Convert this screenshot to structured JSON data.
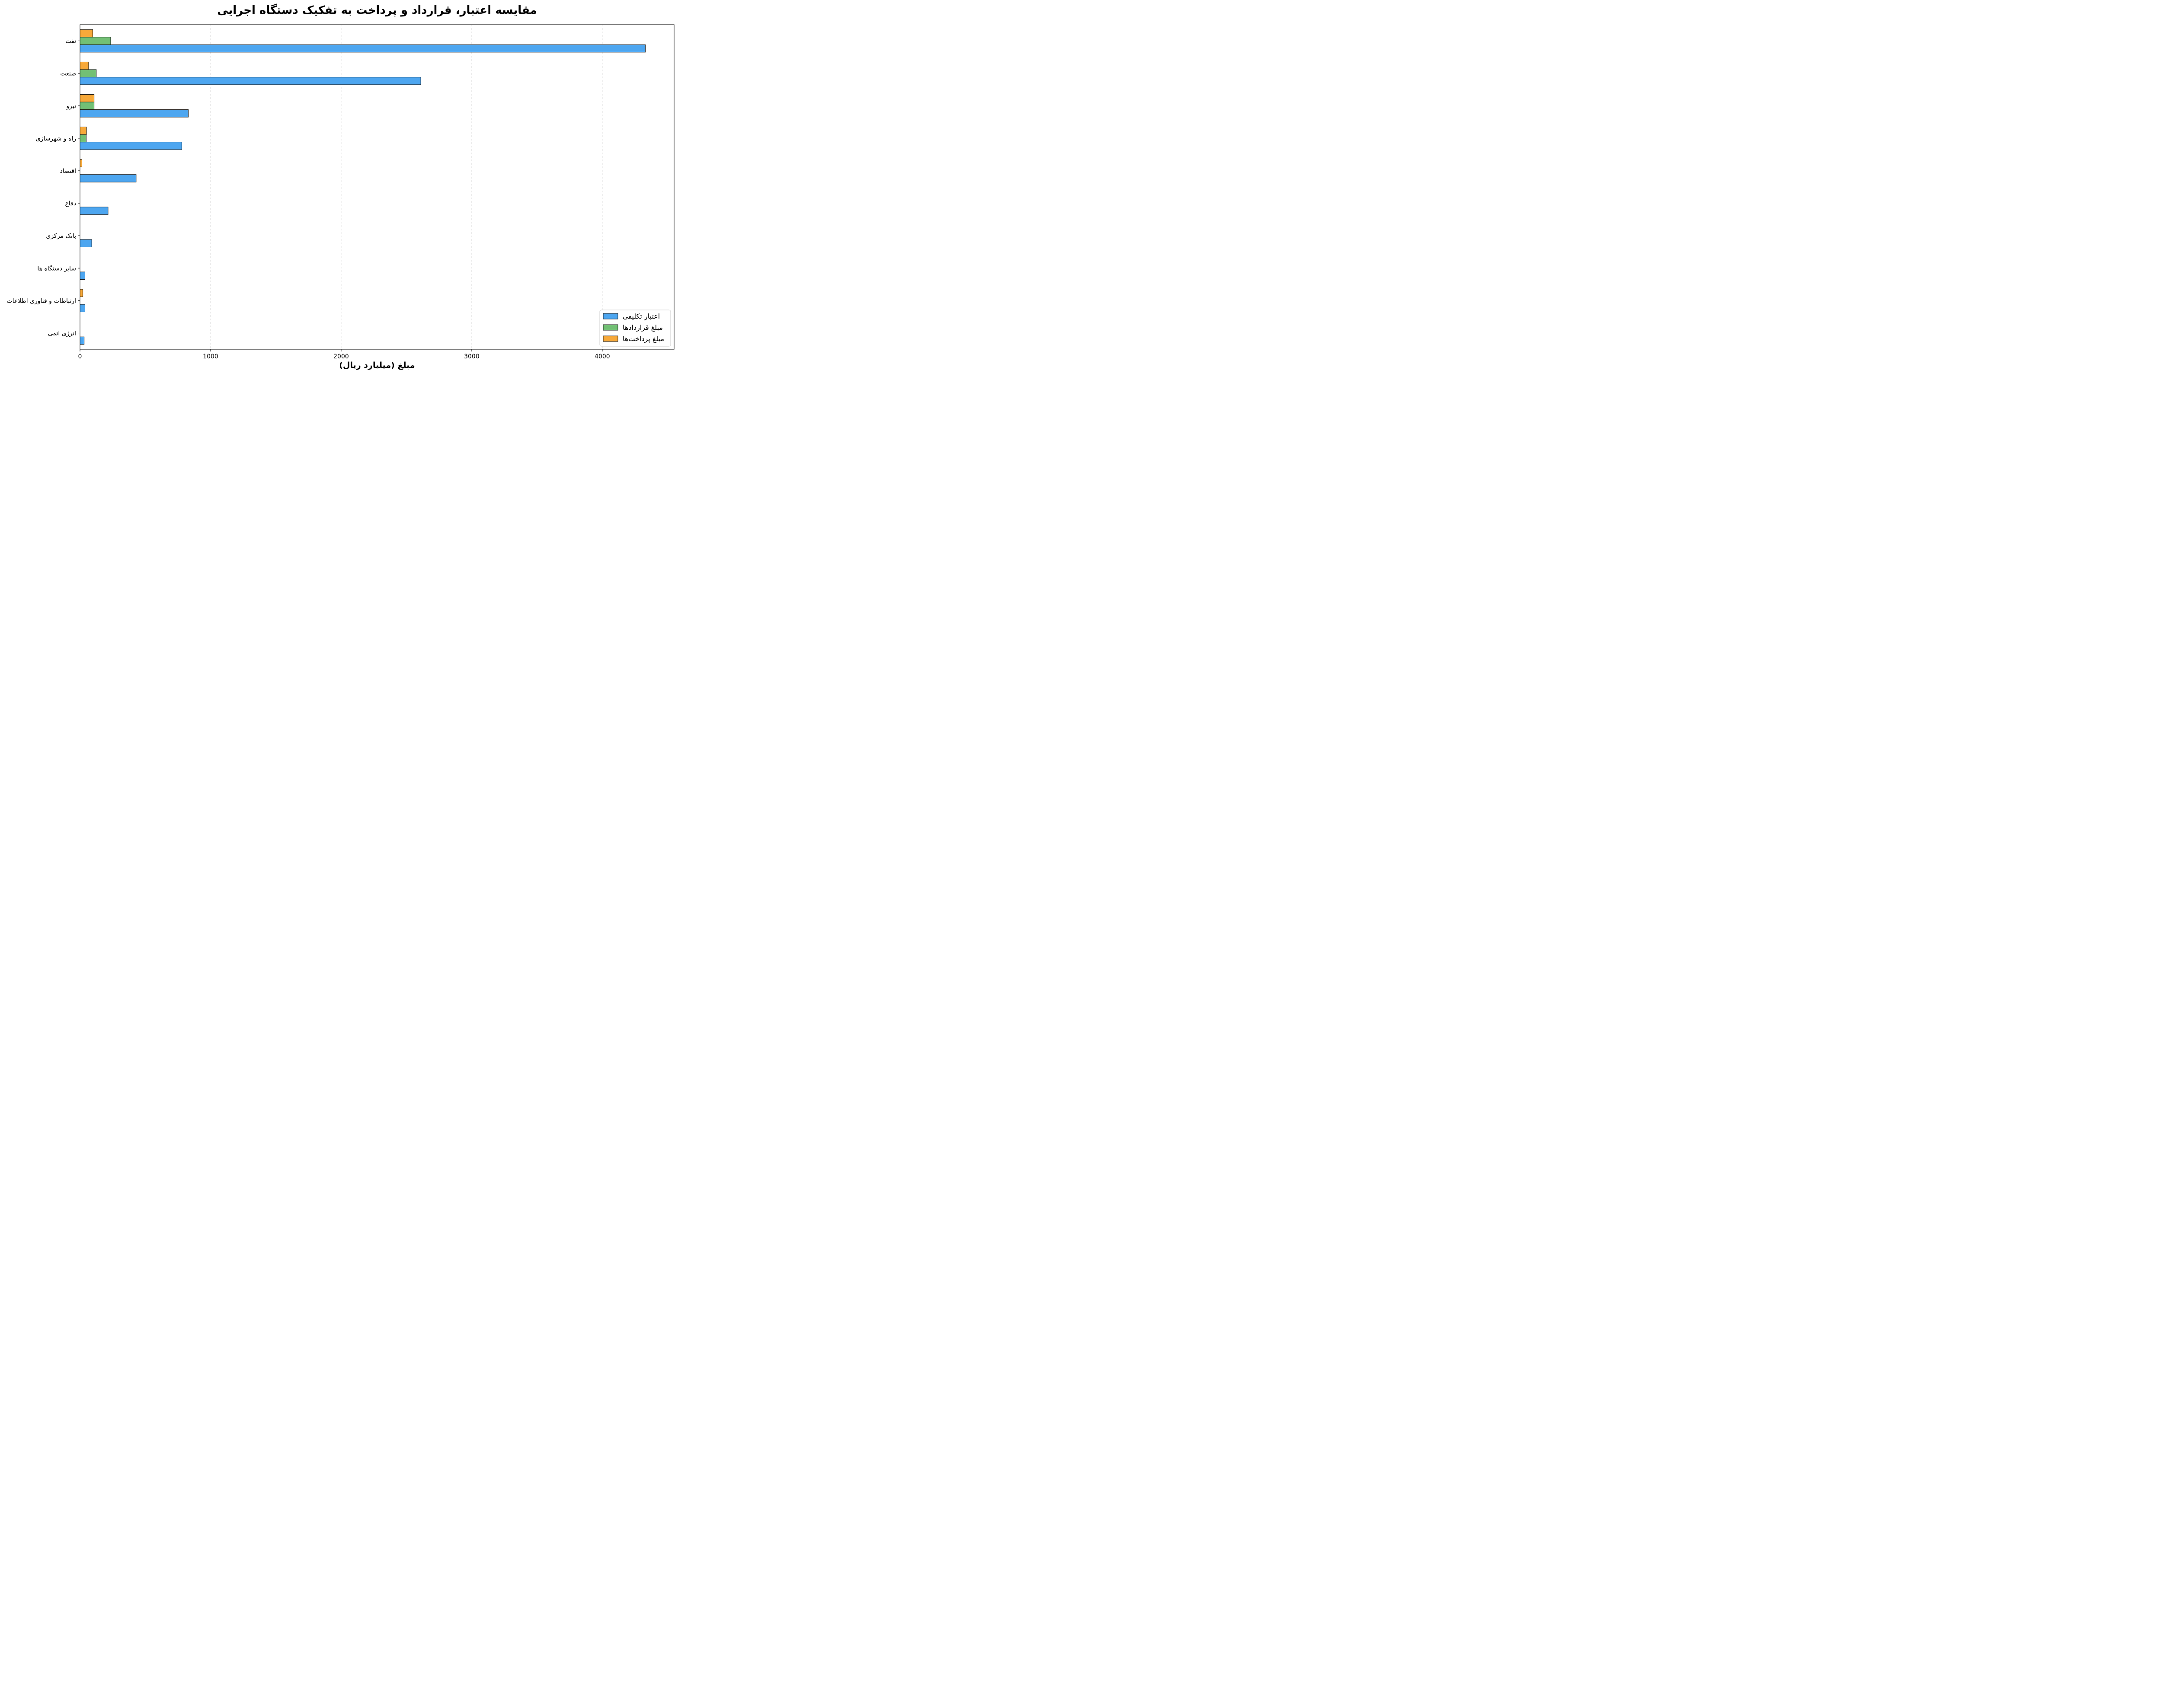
{
  "chart_data": {
    "type": "bar",
    "orientation": "horizontal",
    "title": "مقایسه اعتبار، قرارداد و پرداخت به تفکیک دستگاه اجرایی",
    "xlabel": "مبلغ (میلیارد ریال)",
    "ylabel": "",
    "xlim": [
      0,
      4550
    ],
    "x_ticks": [
      0,
      1000,
      2000,
      3000,
      4000
    ],
    "grid": "x-dashed",
    "legend_position": "bottom-right",
    "categories": [
      "نفت",
      "صنعت",
      "نیرو",
      "راه و شهرسازی",
      "اقتصاد",
      "دفاع",
      "بانک مرکزی",
      "سایر دستگاه ها",
      "ارتباطات و فناوری اطلاعات",
      "انرژی اتمی"
    ],
    "series": [
      {
        "name": "اعتبار تکلیفی",
        "color": "#4da6f0",
        "values": [
          4330,
          2610,
          830,
          780,
          430,
          215,
          90,
          38,
          38,
          32
        ]
      },
      {
        "name": "مبلغ قراردادها",
        "color": "#72c075",
        "values": [
          235,
          125,
          108,
          48,
          0,
          0,
          0,
          0,
          0,
          0
        ]
      },
      {
        "name": "مبلغ پرداخت‌ها",
        "color": "#f7a93a",
        "values": [
          98,
          66,
          108,
          50,
          15,
          0,
          0,
          0,
          22,
          0
        ]
      }
    ]
  }
}
